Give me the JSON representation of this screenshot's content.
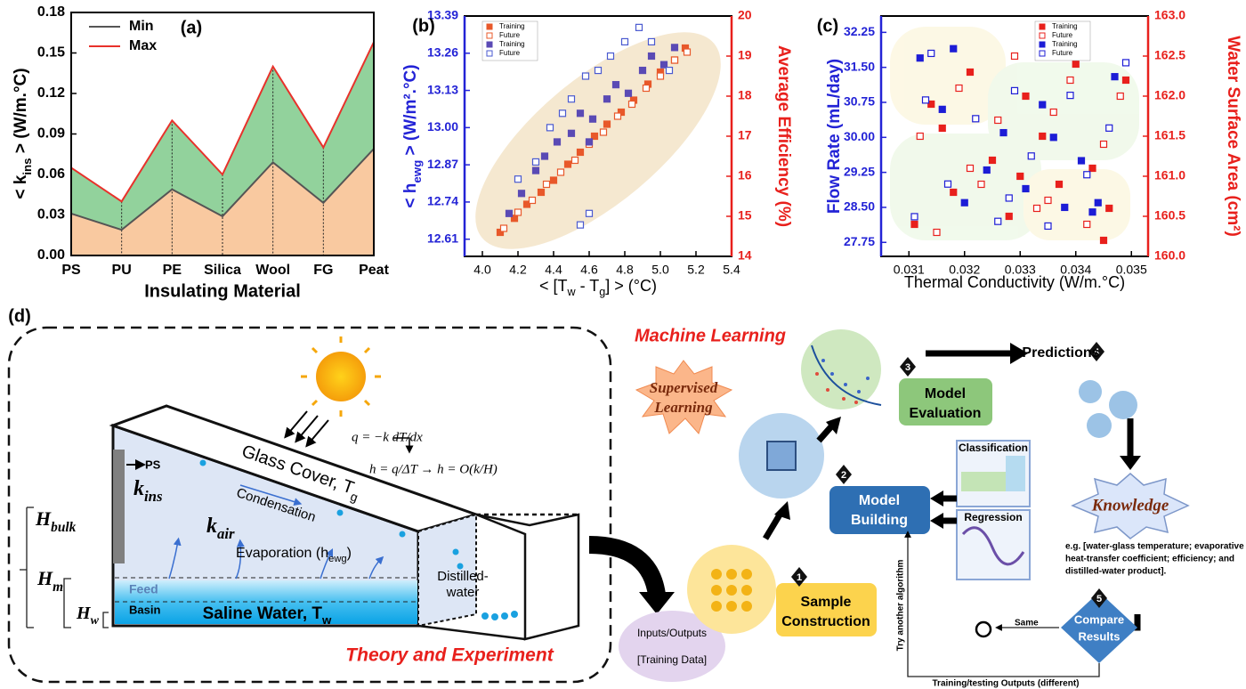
{
  "chart_data": [
    {
      "type": "area",
      "label": "(a)",
      "xlabel": "Insulating Material",
      "ylabel": [
        "< k",
        "ins",
        " > (W/m.°C)"
      ],
      "categories": [
        "PS",
        "PU",
        "PE",
        "Silica",
        "Wool",
        "FG",
        "Peat"
      ],
      "series": [
        {
          "name": "Min",
          "color": "#555555",
          "fill": "#f9c9a0",
          "values": [
            0.031,
            0.019,
            0.049,
            0.029,
            0.069,
            0.039,
            0.079
          ]
        },
        {
          "name": "Max",
          "color": "#e8312b",
          "fill": "#92d29c",
          "values": [
            0.065,
            0.04,
            0.1,
            0.06,
            0.14,
            0.08,
            0.158
          ]
        }
      ],
      "ylim": [
        0,
        0.18
      ],
      "yticks": [
        {
          "value": 0,
          "label": "0.00"
        },
        0.03,
        0.06,
        0.09,
        0.12,
        0.15,
        0.18
      ],
      "legend": "upper left"
    },
    {
      "type": "scatter",
      "label": "(b)",
      "xlabel": [
        "< [T",
        "w",
        " - T",
        "g",
        "] > (°C)"
      ],
      "ylabel": [
        "< h",
        "ewg",
        " > (W/m².°C)"
      ],
      "y2label": "Average Efficiency (%)",
      "ycolor": "#2323d6",
      "y2color": "#e8201c",
      "xlim": [
        3.9,
        5.4
      ],
      "xticks": [
        {
          "value": 4,
          "label": "4.0"
        },
        4.2,
        4.4,
        4.6,
        4.8,
        {
          "value": 5,
          "label": "5.0"
        },
        5.2,
        5.4
      ],
      "ylim": [
        12.55,
        13.39
      ],
      "yticks": [
        12.61,
        12.74,
        12.87,
        {
          "value": 13,
          "label": "13.00"
        },
        13.13,
        13.26,
        13.39
      ],
      "y2lim": [
        14,
        20
      ],
      "y2ticks": [
        14,
        15,
        16,
        17,
        18,
        19,
        20
      ],
      "legend": "upper left",
      "series": [
        {
          "name": "Training",
          "color": "#e8582a",
          "marker": "filled",
          "axis": "y2",
          "x": [
            4.1,
            4.18,
            4.25,
            4.33,
            4.4,
            4.48,
            4.55,
            4.63,
            4.7,
            4.78,
            4.85,
            4.93,
            5.0,
            5.08,
            5.14
          ],
          "values": [
            14.6,
            14.95,
            15.3,
            15.6,
            15.9,
            16.3,
            16.6,
            17.0,
            17.3,
            17.6,
            17.9,
            18.3,
            18.6,
            18.9,
            19.2
          ]
        },
        {
          "name": "Future",
          "color": "#e8582a",
          "marker": "open",
          "axis": "y2",
          "x": [
            4.12,
            4.2,
            4.28,
            4.36,
            4.44,
            4.52,
            4.6,
            4.68,
            4.76,
            4.84,
            4.92,
            5.0,
            5.08,
            5.15
          ],
          "values": [
            14.7,
            15.1,
            15.4,
            15.8,
            16.1,
            16.4,
            16.8,
            17.1,
            17.5,
            17.8,
            18.2,
            18.5,
            18.9,
            19.1
          ]
        },
        {
          "name": "Training",
          "color": "#5a4ab5",
          "marker": "filled",
          "x": [
            4.15,
            4.22,
            4.3,
            4.35,
            4.42,
            4.5,
            4.55,
            4.62,
            4.7,
            4.75,
            4.82,
            4.9,
            4.95,
            5.02,
            5.08,
            4.6
          ],
          "values": [
            12.7,
            12.77,
            12.85,
            12.9,
            12.95,
            12.98,
            13.05,
            13.03,
            13.1,
            13.15,
            13.12,
            13.2,
            13.25,
            13.22,
            13.28,
            12.95
          ]
        },
        {
          "name": "Future",
          "color": "#4a5ad0",
          "marker": "open",
          "x": [
            4.2,
            4.3,
            4.38,
            4.45,
            4.5,
            4.58,
            4.65,
            4.72,
            4.8,
            4.88,
            4.95,
            5.05,
            4.55,
            4.6
          ],
          "values": [
            12.82,
            12.88,
            13.0,
            13.05,
            13.1,
            13.18,
            13.2,
            13.25,
            13.3,
            13.35,
            13.3,
            13.2,
            12.66,
            12.7
          ]
        }
      ]
    },
    {
      "type": "scatter",
      "label": "(c)",
      "xlabel": "Thermal Conductivity (W/m.°C)",
      "ylabel": "Flow Rate (mL/day)",
      "y2label": "Water Surface Area (cm²)",
      "ycolor": "#2323d6",
      "y2color": "#e8201c",
      "xlim": [
        0.0305,
        0.0353
      ],
      "xticks": [
        0.031,
        0.032,
        0.033,
        0.034,
        0.035
      ],
      "ylim": [
        27.45,
        32.6
      ],
      "yticks": [
        27.75,
        {
          "value": 28.5,
          "label": "28.50"
        },
        29.25,
        {
          "value": 30,
          "label": "30.00"
        },
        30.75,
        {
          "value": 31.5,
          "label": "31.50"
        },
        32.25
      ],
      "y2lim": [
        160,
        163
      ],
      "y2ticks": [
        {
          "value": 160,
          "label": "160.0"
        },
        160.5,
        {
          "value": 161,
          "label": "161.0"
        },
        161.5,
        {
          "value": 162,
          "label": "162.0"
        },
        162.5,
        {
          "value": 163,
          "label": "163.0"
        }
      ],
      "legend": "upper right",
      "series": [
        {
          "name": "Training",
          "color": "#e8201c",
          "marker": "filled",
          "axis": "y2",
          "x": [
            0.0311,
            0.0314,
            0.0318,
            0.0321,
            0.0325,
            0.0328,
            0.0331,
            0.0334,
            0.0337,
            0.034,
            0.0343,
            0.0346,
            0.0349,
            0.0316,
            0.033,
            0.0345
          ],
          "values": [
            160.4,
            161.9,
            160.8,
            162.3,
            161.2,
            160.5,
            162.0,
            161.5,
            160.9,
            162.4,
            161.1,
            160.6,
            162.2,
            161.6,
            161.0,
            160.2
          ]
        },
        {
          "name": "Future",
          "color": "#e8201c",
          "marker": "open",
          "axis": "y2",
          "x": [
            0.0312,
            0.0315,
            0.0319,
            0.0323,
            0.0326,
            0.0329,
            0.0333,
            0.0336,
            0.0339,
            0.0342,
            0.0345,
            0.0348,
            0.0321,
            0.0335
          ],
          "values": [
            161.5,
            160.3,
            162.1,
            160.9,
            161.7,
            162.5,
            160.6,
            161.8,
            162.2,
            160.4,
            161.4,
            162.0,
            161.1,
            160.7
          ]
        },
        {
          "name": "Training",
          "color": "#1d1dd6",
          "marker": "filled",
          "x": [
            0.0312,
            0.0316,
            0.032,
            0.0324,
            0.0327,
            0.0331,
            0.0334,
            0.0338,
            0.0341,
            0.0344,
            0.0347,
            0.0318,
            0.0336,
            0.0343
          ],
          "values": [
            31.7,
            30.6,
            28.6,
            29.3,
            30.1,
            28.9,
            30.7,
            28.5,
            29.5,
            28.6,
            31.3,
            31.9,
            30.0,
            28.4
          ]
        },
        {
          "name": "Future",
          "color": "#1d1dd6",
          "marker": "open",
          "x": [
            0.0311,
            0.0314,
            0.0317,
            0.0322,
            0.0326,
            0.0329,
            0.0332,
            0.0335,
            0.0339,
            0.0342,
            0.0346,
            0.0349,
            0.0313,
            0.0328
          ],
          "values": [
            28.3,
            31.8,
            29.0,
            30.4,
            28.2,
            31.0,
            29.6,
            28.1,
            30.9,
            29.2,
            30.2,
            31.6,
            30.8,
            28.7
          ]
        }
      ]
    }
  ],
  "diagram": {
    "label": "(d)",
    "theory": {
      "title": "Theory and Experiment",
      "glass_cover": [
        "Glass Cover, T",
        "g"
      ],
      "eq_flux": "q = −k dT/dx",
      "eq_h": "h = q/ΔT → h = O(k/H)",
      "ps": "PS",
      "k_ins": [
        "k",
        "ins"
      ],
      "condensation": "Condensation",
      "k_air": [
        "k",
        "air"
      ],
      "evaporation": [
        "Evaporation (h",
        "ewg",
        ")"
      ],
      "h_bulk": [
        "H",
        "bulk"
      ],
      "h_m": [
        "H",
        "m"
      ],
      "h_w": [
        "H",
        "w"
      ],
      "feed": "Feed",
      "basin": "Basin",
      "saline": [
        "Saline Water, T",
        "w"
      ],
      "distilled": [
        "Distilled-",
        "water"
      ]
    },
    "ml": {
      "title": "Machine Learning",
      "supervised": [
        "Supervised",
        "Learning"
      ],
      "inputs": [
        "Inputs/Outputs",
        "[Training Data]"
      ],
      "steps": [
        {
          "number": "1",
          "label": [
            "Sample",
            "Construction"
          ]
        },
        {
          "number": "2",
          "label": [
            "Model",
            "Building"
          ]
        },
        {
          "number": "3",
          "label": [
            "Model",
            "Evaluation"
          ]
        },
        {
          "number": "4",
          "label": [
            "Predictions"
          ]
        },
        {
          "number": "5",
          "label": [
            "Compare",
            "Results"
          ]
        }
      ],
      "classification": "Classification",
      "regression": "Regression",
      "knowledge": "Knowledge",
      "example": [
        "e.g. [water-glass temperature; evaporative",
        "heat-transfer coefficient; efficiency; and",
        "distilled-water product]."
      ],
      "same": "Same",
      "retry": "Try another algorithm",
      "feedback": "Training/testing Outputs (different)"
    }
  }
}
